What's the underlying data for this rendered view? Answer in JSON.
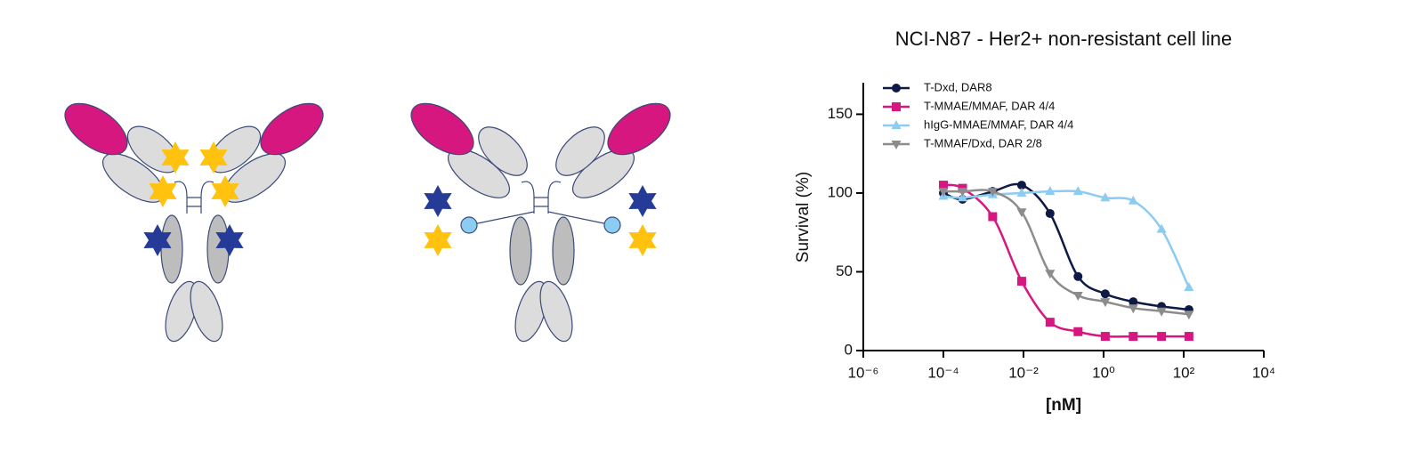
{
  "chart_data": {
    "type": "line",
    "title": "NCI-N87 - Her2+ non-resistant cell line",
    "x_label": "[nM]",
    "y_label": "Survival (%)",
    "xscale": "log",
    "xlim": [
      1e-06,
      10000
    ],
    "xticks": [
      {
        "value": 1e-06,
        "label": "10⁻⁶"
      },
      {
        "value": 0.0001,
        "label": "10⁻⁴"
      },
      {
        "value": 0.01,
        "label": "10⁻²"
      },
      {
        "value": 1,
        "label": "10⁰"
      },
      {
        "value": 100,
        "label": "10²"
      },
      {
        "value": 10000,
        "label": "10⁴"
      }
    ],
    "ylim": [
      0,
      170
    ],
    "yticks": [
      0,
      50,
      100,
      150
    ],
    "legend": "upper left",
    "x": [
      0.0001,
      0.0003,
      0.0017,
      0.009,
      0.046,
      0.23,
      1.1,
      5.5,
      28,
      135
    ],
    "series": [
      {
        "name": "T-Dxd, DAR8",
        "color": "#0d1a45",
        "marker": "circle",
        "values": [
          100,
          96,
          101,
          105,
          87,
          47,
          36,
          31,
          28,
          26
        ]
      },
      {
        "name": "T-MMAE/MMAF, DAR 4/4",
        "color": "#d6177f",
        "marker": "square",
        "values": [
          105,
          103,
          85,
          44,
          18,
          12,
          9,
          9,
          9,
          9
        ]
      },
      {
        "name": "hIgG-MMAE/MMAF, DAR 4/4",
        "color": "#8ccbf2",
        "marker": "triangle-up",
        "values": [
          98,
          97,
          99,
          100,
          101,
          101,
          97,
          95,
          77,
          40
        ]
      },
      {
        "name": "T-MMAF/Dxd, DAR 2/8",
        "color": "#8c8c8c",
        "marker": "triangle-down",
        "values": [
          101,
          101,
          101,
          88,
          49,
          35,
          31,
          27,
          25,
          23
        ]
      }
    ]
  }
}
